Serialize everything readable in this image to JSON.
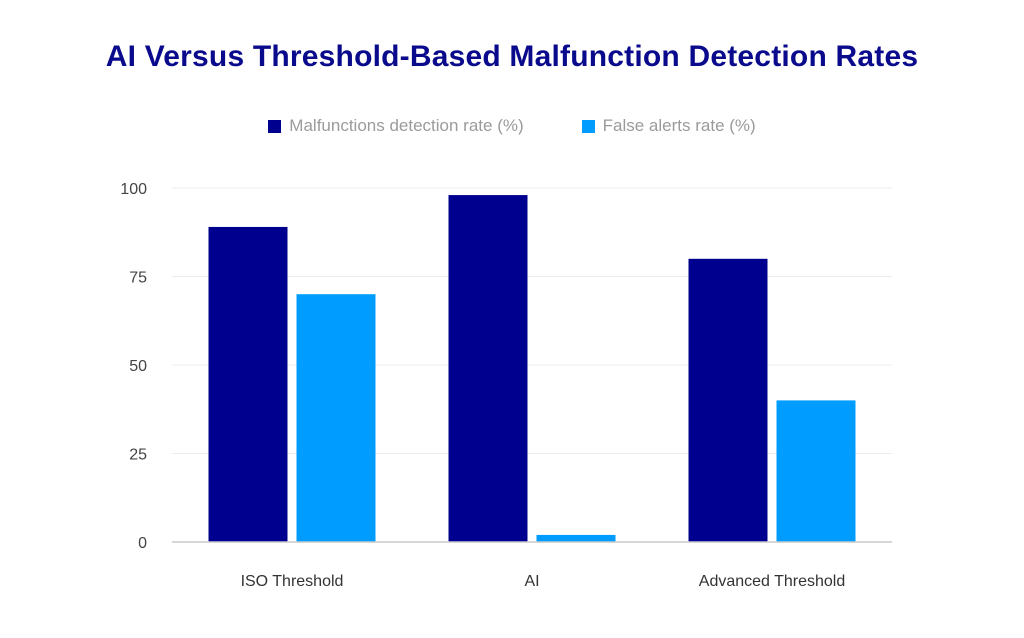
{
  "chart_data": {
    "type": "bar",
    "title": "AI Versus Threshold-Based Malfunction Detection Rates",
    "categories": [
      "ISO Threshold",
      "AI",
      "Advanced Threshold"
    ],
    "series": [
      {
        "name": "Malfunctions detection rate (%)",
        "values": [
          89,
          98,
          80
        ],
        "color": "#00008f"
      },
      {
        "name": "False alerts rate (%)",
        "values": [
          70,
          2,
          40
        ],
        "color": "#009cff"
      }
    ],
    "ylim": [
      0,
      100
    ],
    "yticks": [
      "0",
      "25",
      "50",
      "75",
      "100"
    ],
    "grid": true,
    "legend_position": "top"
  }
}
